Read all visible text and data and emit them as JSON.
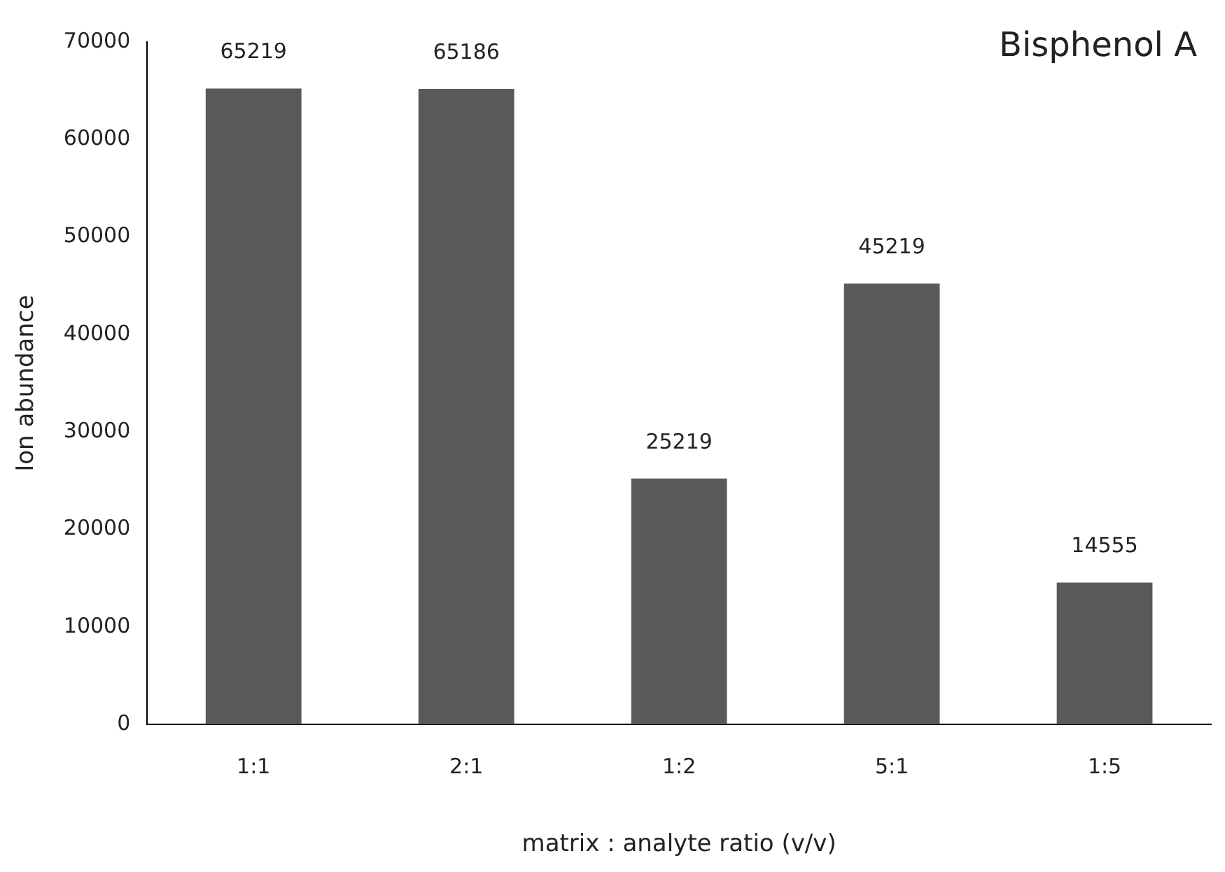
{
  "chart_data": {
    "type": "bar",
    "title": "Bisphenol A",
    "xlabel": "matrix : analyte ratio (v/v)",
    "ylabel": "Ion abundance",
    "categories": [
      "1:1",
      "2:1",
      "1:2",
      "5:1",
      "1:5"
    ],
    "values": [
      65219,
      65186,
      25219,
      45219,
      14555
    ],
    "color": "#595959",
    "ylim": [
      0,
      70000
    ],
    "yticks": [
      0,
      10000,
      20000,
      30000,
      40000,
      50000,
      60000,
      70000
    ],
    "grid": false,
    "legend": false,
    "data_labels": true
  }
}
